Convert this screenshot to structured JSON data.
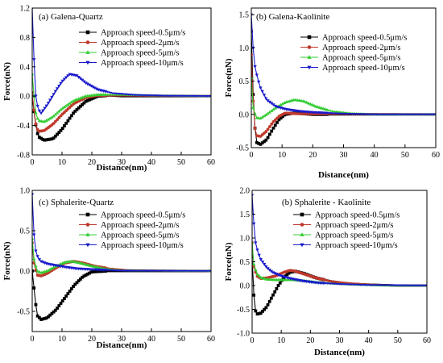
{
  "chart_data": [
    {
      "type": "line",
      "title": "(a) Galena-Quartz",
      "xlabel": "Distance(nm)",
      "ylabel": "Force(nN)",
      "xlim": [
        0,
        60
      ],
      "ylim": [
        -0.8,
        1.2
      ],
      "xticks": [
        "0",
        "10",
        "20",
        "30",
        "40",
        "50",
        "60"
      ],
      "xtick_values": [
        0,
        10,
        20,
        30,
        40,
        50,
        60
      ],
      "yticks": [
        "-0.8",
        "-0.4",
        "0.0",
        "0.4",
        "0.8",
        "1.2"
      ],
      "ytick_values": [
        -0.8,
        -0.4,
        0.0,
        0.4,
        0.8,
        1.2
      ],
      "grid": false,
      "legend_position": "top-right",
      "series": [
        {
          "name": "Approach speed-0.5μm/s",
          "color": "#000000",
          "marker": "square",
          "key": [
            [
              0,
              0.0
            ],
            [
              1,
              -0.35
            ],
            [
              2,
              -0.55
            ],
            [
              4,
              -0.6
            ],
            [
              7,
              -0.58
            ],
            [
              10,
              -0.45
            ],
            [
              14,
              -0.22
            ],
            [
              18,
              -0.07
            ],
            [
              22,
              0.0
            ],
            [
              26,
              0.01
            ],
            [
              30,
              0.0
            ],
            [
              60,
              0.0
            ]
          ]
        },
        {
          "name": "Approach speed-2μm/s",
          "color": "#c0392b",
          "marker": "circle",
          "key": [
            [
              0,
              0.05
            ],
            [
              1,
              -0.35
            ],
            [
              2,
              -0.48
            ],
            [
              4,
              -0.47
            ],
            [
              7,
              -0.38
            ],
            [
              10,
              -0.25
            ],
            [
              14,
              -0.1
            ],
            [
              18,
              -0.02
            ],
            [
              22,
              0.01
            ],
            [
              30,
              0.01
            ],
            [
              60,
              0.0
            ]
          ]
        },
        {
          "name": "Approach speed-5μm/s",
          "color": "#33cc33",
          "marker": "triangle-up",
          "key": [
            [
              0,
              0.3
            ],
            [
              1,
              -0.2
            ],
            [
              2,
              -0.33
            ],
            [
              4,
              -0.35
            ],
            [
              7,
              -0.28
            ],
            [
              10,
              -0.17
            ],
            [
              14,
              -0.06
            ],
            [
              18,
              0.0
            ],
            [
              22,
              0.02
            ],
            [
              28,
              0.02
            ],
            [
              60,
              0.0
            ]
          ]
        },
        {
          "name": "Approach speed-10μm/s",
          "color": "#1a1acc",
          "marker": "triangle-down",
          "key": [
            [
              0,
              1.2
            ],
            [
              0.6,
              0.5
            ],
            [
              1,
              0.05
            ],
            [
              2,
              -0.18
            ],
            [
              3,
              -0.23
            ],
            [
              5,
              -0.12
            ],
            [
              8,
              0.08
            ],
            [
              10,
              0.2
            ],
            [
              12.5,
              0.3
            ],
            [
              15,
              0.28
            ],
            [
              18,
              0.18
            ],
            [
              22,
              0.09
            ],
            [
              27,
              0.04
            ],
            [
              35,
              0.015
            ],
            [
              45,
              0.005
            ],
            [
              60,
              0.0
            ]
          ]
        }
      ]
    },
    {
      "type": "line",
      "title": "(b) Galena-Kaolinite",
      "xlabel": "Distance(nm)",
      "ylabel": "Force(nN)",
      "xlim": [
        0,
        60
      ],
      "ylim": [
        -0.5,
        1.6
      ],
      "xticks": [
        "0",
        "10",
        "20",
        "30",
        "40",
        "50",
        "60"
      ],
      "xtick_values": [
        0,
        10,
        20,
        30,
        40,
        50,
        60
      ],
      "yticks": [
        "-0.5",
        "0.0",
        "0.5",
        "1.0",
        "1.5"
      ],
      "ytick_values": [
        -0.5,
        0.0,
        0.5,
        1.0,
        1.5
      ],
      "grid": false,
      "legend_position": "top-right",
      "series": [
        {
          "name": "Approach speed-0.5μm/s",
          "color": "#000000",
          "marker": "square",
          "key": [
            [
              0,
              1.25
            ],
            [
              0.6,
              0.3
            ],
            [
              1,
              -0.1
            ],
            [
              1.6,
              -0.42
            ],
            [
              3,
              -0.45
            ],
            [
              5,
              -0.38
            ],
            [
              7,
              -0.22
            ],
            [
              9,
              -0.08
            ],
            [
              11,
              0.0
            ],
            [
              14,
              0.02
            ],
            [
              20,
              0.0
            ],
            [
              60,
              0.0
            ]
          ]
        },
        {
          "name": "Approach speed-2μm/s",
          "color": "#c0392b",
          "marker": "circle",
          "key": [
            [
              0,
              0.9
            ],
            [
              0.6,
              0.2
            ],
            [
              1,
              -0.15
            ],
            [
              1.6,
              -0.32
            ],
            [
              3,
              -0.33
            ],
            [
              5,
              -0.25
            ],
            [
              7,
              -0.12
            ],
            [
              9,
              -0.03
            ],
            [
              11,
              0.02
            ],
            [
              15,
              0.01
            ],
            [
              60,
              0.0
            ]
          ]
        },
        {
          "name": "Approach speed-5μm/s",
          "color": "#33cc33",
          "marker": "triangle-up",
          "key": [
            [
              0,
              0.55
            ],
            [
              0.6,
              0.1
            ],
            [
              1.6,
              -0.05
            ],
            [
              3,
              -0.06
            ],
            [
              5,
              0.0
            ],
            [
              8,
              0.1
            ],
            [
              11,
              0.18
            ],
            [
              14,
              0.22
            ],
            [
              17,
              0.2
            ],
            [
              21,
              0.12
            ],
            [
              26,
              0.05
            ],
            [
              32,
              0.02
            ],
            [
              40,
              0.0
            ],
            [
              60,
              0.0
            ]
          ]
        },
        {
          "name": "Approach speed-10μm/s",
          "color": "#1a1acc",
          "marker": "triangle-down",
          "key": [
            [
              0,
              1.5
            ],
            [
              0.6,
              1.0
            ],
            [
              1.2,
              0.72
            ],
            [
              2,
              0.55
            ],
            [
              3,
              0.4
            ],
            [
              5,
              0.22
            ],
            [
              8,
              0.12
            ],
            [
              11,
              0.08
            ],
            [
              15,
              0.05
            ],
            [
              20,
              0.03
            ],
            [
              30,
              0.01
            ],
            [
              40,
              0.0
            ],
            [
              60,
              0.0
            ]
          ]
        }
      ]
    },
    {
      "type": "line",
      "title": "(c) Sphalerite-Quartz",
      "xlabel": "Distance(nm)",
      "ylabel": "Force(nN)",
      "xlim": [
        0,
        60
      ],
      "ylim": [
        -0.75,
        1.0
      ],
      "xticks": [
        "0",
        "10",
        "20",
        "30",
        "40",
        "50",
        "60"
      ],
      "xtick_values": [
        0,
        10,
        20,
        30,
        40,
        50,
        60
      ],
      "yticks": [
        "-0.5",
        "0.0",
        "0.5",
        "1.0"
      ],
      "ytick_values": [
        -0.5,
        0.0,
        0.5,
        1.0
      ],
      "grid": false,
      "legend_position": "top-right",
      "series": [
        {
          "name": "Approach speed-0.5μm/s",
          "color": "#000000",
          "marker": "square",
          "key": [
            [
              0,
              0.0
            ],
            [
              1,
              -0.35
            ],
            [
              1.6,
              -0.55
            ],
            [
              3,
              -0.6
            ],
            [
              5,
              -0.58
            ],
            [
              8,
              -0.48
            ],
            [
              11,
              -0.33
            ],
            [
              14,
              -0.18
            ],
            [
              17,
              -0.07
            ],
            [
              20,
              -0.01
            ],
            [
              25,
              0.0
            ],
            [
              60,
              0.0
            ]
          ]
        },
        {
          "name": "Approach speed-2μm/s",
          "color": "#c0392b",
          "marker": "circle",
          "key": [
            [
              0,
              0.35
            ],
            [
              0.6,
              0.1
            ],
            [
              1.6,
              -0.05
            ],
            [
              3,
              -0.06
            ],
            [
              5,
              -0.03
            ],
            [
              8,
              0.04
            ],
            [
              11,
              0.1
            ],
            [
              14,
              0.12
            ],
            [
              17,
              0.1
            ],
            [
              21,
              0.06
            ],
            [
              26,
              0.03
            ],
            [
              32,
              0.01
            ],
            [
              60,
              0.0
            ]
          ]
        },
        {
          "name": "Approach speed-5μm/s",
          "color": "#33cc33",
          "marker": "triangle-up",
          "key": [
            [
              0,
              0.4
            ],
            [
              0.6,
              0.15
            ],
            [
              1.6,
              0.0
            ],
            [
              3,
              -0.02
            ],
            [
              5,
              0.0
            ],
            [
              8,
              0.06
            ],
            [
              11,
              0.11
            ],
            [
              13.5,
              0.12
            ],
            [
              16,
              0.1
            ],
            [
              19,
              0.07
            ],
            [
              24,
              0.03
            ],
            [
              30,
              0.01
            ],
            [
              60,
              0.0
            ]
          ]
        },
        {
          "name": "Approach speed-10μm/s",
          "color": "#1a1acc",
          "marker": "triangle-down",
          "key": [
            [
              0,
              0.95
            ],
            [
              0.6,
              0.45
            ],
            [
              1.2,
              0.25
            ],
            [
              2,
              0.16
            ],
            [
              3,
              0.12
            ],
            [
              5,
              0.09
            ],
            [
              8,
              0.07
            ],
            [
              11,
              0.05
            ],
            [
              15,
              0.03
            ],
            [
              20,
              0.02
            ],
            [
              30,
              0.005
            ],
            [
              60,
              0.0
            ]
          ]
        }
      ]
    },
    {
      "type": "line",
      "title": "(b) Sphalerite - Kaolinite",
      "xlabel": "Distance(nm)",
      "ylabel": "Force(nN)",
      "xlim": [
        0,
        60
      ],
      "ylim": [
        -1.0,
        2.0
      ],
      "xticks": [
        "0",
        "10",
        "20",
        "30",
        "40",
        "50",
        "60"
      ],
      "xtick_values": [
        0,
        10,
        20,
        30,
        40,
        50,
        60
      ],
      "yticks": [
        "-1.0",
        "-0.5",
        "0.0",
        "0.5",
        "1.0",
        "1.5",
        "2.0"
      ],
      "ytick_values": [
        -1.0,
        -0.5,
        0.0,
        0.5,
        1.0,
        1.5,
        2.0
      ],
      "grid": false,
      "legend_position": "top-right",
      "series": [
        {
          "name": "Approach speed-0.5μm/s",
          "color": "#000000",
          "marker": "square",
          "key": [
            [
              0,
              0.6
            ],
            [
              0.6,
              -0.2
            ],
            [
              1,
              -0.5
            ],
            [
              1.6,
              -0.6
            ],
            [
              3,
              -0.58
            ],
            [
              5,
              -0.45
            ],
            [
              7,
              -0.22
            ],
            [
              9,
              0.0
            ],
            [
              11,
              0.18
            ],
            [
              13,
              0.28
            ],
            [
              15,
              0.3
            ],
            [
              18,
              0.25
            ],
            [
              22,
              0.16
            ],
            [
              27,
              0.09
            ],
            [
              33,
              0.04
            ],
            [
              40,
              0.02
            ],
            [
              50,
              0.0
            ],
            [
              60,
              0.0
            ]
          ]
        },
        {
          "name": "Approach speed-2μm/s",
          "color": "#c0392b",
          "marker": "circle",
          "key": [
            [
              0,
              0.9
            ],
            [
              0.6,
              0.4
            ],
            [
              1.6,
              0.2
            ],
            [
              3,
              0.15
            ],
            [
              5,
              0.16
            ],
            [
              8,
              0.2
            ],
            [
              11,
              0.28
            ],
            [
              13,
              0.32
            ],
            [
              15,
              0.3
            ],
            [
              18,
              0.24
            ],
            [
              22,
              0.16
            ],
            [
              27,
              0.09
            ],
            [
              33,
              0.05
            ],
            [
              40,
              0.02
            ],
            [
              50,
              0.0
            ],
            [
              60,
              0.0
            ]
          ]
        },
        {
          "name": "Approach speed-5μm/s",
          "color": "#33cc33",
          "marker": "triangle-up",
          "key": [
            [
              0,
              0.9
            ],
            [
              0.6,
              0.45
            ],
            [
              1.6,
              0.25
            ],
            [
              3,
              0.17
            ],
            [
              5,
              0.13
            ],
            [
              8,
              0.12
            ],
            [
              11,
              0.12
            ],
            [
              14,
              0.12
            ],
            [
              18,
              0.1
            ],
            [
              22,
              0.07
            ],
            [
              28,
              0.04
            ],
            [
              35,
              0.02
            ],
            [
              45,
              0.0
            ],
            [
              60,
              0.0
            ]
          ]
        },
        {
          "name": "Approach speed-10μm/s",
          "color": "#1a1acc",
          "marker": "triangle-down",
          "key": [
            [
              0,
              1.9
            ],
            [
              0.6,
              1.3
            ],
            [
              1.2,
              0.9
            ],
            [
              2,
              0.7
            ],
            [
              3,
              0.55
            ],
            [
              5,
              0.38
            ],
            [
              7,
              0.28
            ],
            [
              10,
              0.2
            ],
            [
              13,
              0.15
            ],
            [
              17,
              0.1
            ],
            [
              22,
              0.06
            ],
            [
              30,
              0.03
            ],
            [
              40,
              0.01
            ],
            [
              60,
              0.0
            ]
          ]
        }
      ]
    }
  ]
}
